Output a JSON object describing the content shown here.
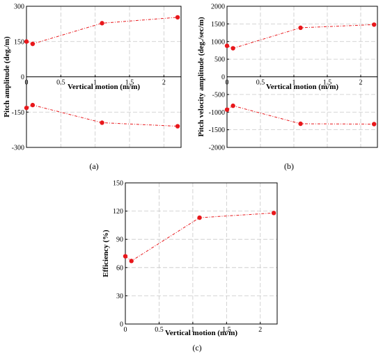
{
  "chart_data": [
    {
      "type": "line",
      "caption": "(a)",
      "xlabel": "Vertical motion (m/m)",
      "ylabel": "Pitch amplitude (deg./m)",
      "xlim": [
        0,
        2.25
      ],
      "ylim": [
        -300,
        300
      ],
      "xticks": [
        "0",
        "0.5",
        "1",
        "1.5",
        "2"
      ],
      "yticks": [
        "-300",
        "-150",
        "0",
        "150",
        "300"
      ],
      "grid": true,
      "series": [
        {
          "x": [
            0,
            0.09,
            1.1,
            2.2
          ],
          "y": [
            150,
            140,
            228,
            253
          ],
          "color": "#e8171b"
        },
        {
          "x": [
            0,
            0.09,
            1.1,
            2.2
          ],
          "y": [
            -132,
            -120,
            -195,
            -210
          ],
          "color": "#e8171b"
        }
      ]
    },
    {
      "type": "line",
      "caption": "(b)",
      "xlabel": "Vertical motion (m/m)",
      "ylabel": "Pitch velocity amplitude (deg./sec/m)",
      "xlim": [
        0,
        2.25
      ],
      "ylim": [
        -2000,
        2000
      ],
      "xticks": [
        "0",
        "0.5",
        "1",
        "1.5",
        "2"
      ],
      "yticks": [
        "-2000",
        "-1500",
        "-1000",
        "-500",
        "0",
        "500",
        "1000",
        "1500",
        "2000"
      ],
      "grid": true,
      "series": [
        {
          "x": [
            0,
            0.09,
            1.1,
            2.2
          ],
          "y": [
            880,
            810,
            1390,
            1480
          ],
          "color": "#e8171b"
        },
        {
          "x": [
            0,
            0.09,
            1.1,
            2.2
          ],
          "y": [
            -930,
            -820,
            -1330,
            -1340
          ],
          "color": "#e8171b"
        }
      ]
    },
    {
      "type": "line",
      "caption": "(c)",
      "xlabel": "Vertical motion (m/m)",
      "ylabel": "Efficiency (%)",
      "xlim": [
        0,
        2.25
      ],
      "ylim": [
        0,
        150
      ],
      "xticks": [
        "0",
        "0.5",
        "1",
        "1.5",
        "2"
      ],
      "yticks": [
        "0",
        "30",
        "60",
        "90",
        "120",
        "150"
      ],
      "grid": true,
      "series": [
        {
          "x": [
            0,
            0.09,
            1.1,
            2.2
          ],
          "y": [
            72,
            67,
            113,
            118
          ],
          "color": "#e8171b"
        }
      ]
    }
  ]
}
